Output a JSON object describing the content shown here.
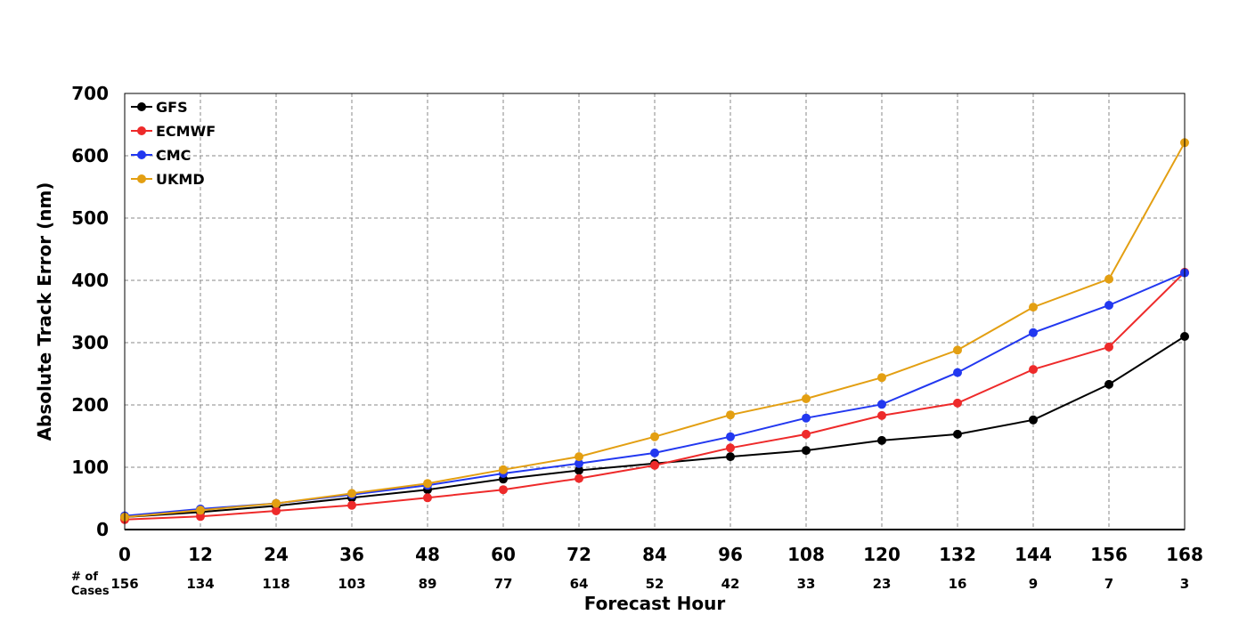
{
  "chart_data": {
    "type": "line",
    "title": "",
    "xlabel": "Forecast Hour",
    "ylabel": "Absolute Track Error (nm)",
    "xlim": [
      0,
      168
    ],
    "ylim": [
      0,
      700
    ],
    "grid": true,
    "legend_position": "top-left",
    "x": [
      0,
      12,
      24,
      36,
      48,
      60,
      72,
      84,
      96,
      108,
      120,
      132,
      144,
      156,
      168
    ],
    "x_ticks": [
      "0",
      "12",
      "24",
      "36",
      "48",
      "60",
      "72",
      "84",
      "96",
      "108",
      "120",
      "132",
      "144",
      "156",
      "168"
    ],
    "y_ticks": [
      "0",
      "100",
      "200",
      "300",
      "400",
      "500",
      "600",
      "700"
    ],
    "cases_label": "# of Cases",
    "cases": [
      "156",
      "134",
      "118",
      "103",
      "89",
      "77",
      "64",
      "52",
      "42",
      "33",
      "23",
      "16",
      "9",
      "7",
      "3"
    ],
    "series": [
      {
        "name": "GFS",
        "color": "#000000",
        "values": [
          20,
          28,
          38,
          51,
          64,
          81,
          95,
          106,
          117,
          127,
          143,
          153,
          176,
          233,
          310
        ]
      },
      {
        "name": "ECMWF",
        "color": "#ee2a2a",
        "values": [
          16,
          21,
          30,
          39,
          51,
          64,
          82,
          103,
          131,
          153,
          183,
          203,
          257,
          293,
          413
        ]
      },
      {
        "name": "CMC",
        "color": "#2238f0",
        "values": [
          22,
          33,
          42,
          56,
          71,
          90,
          106,
          123,
          149,
          179,
          201,
          252,
          316,
          360,
          412
        ]
      },
      {
        "name": "UKMD",
        "color": "#e39f12",
        "values": [
          20,
          31,
          42,
          58,
          74,
          96,
          117,
          149,
          184,
          210,
          244,
          288,
          357,
          402,
          621
        ]
      }
    ]
  }
}
